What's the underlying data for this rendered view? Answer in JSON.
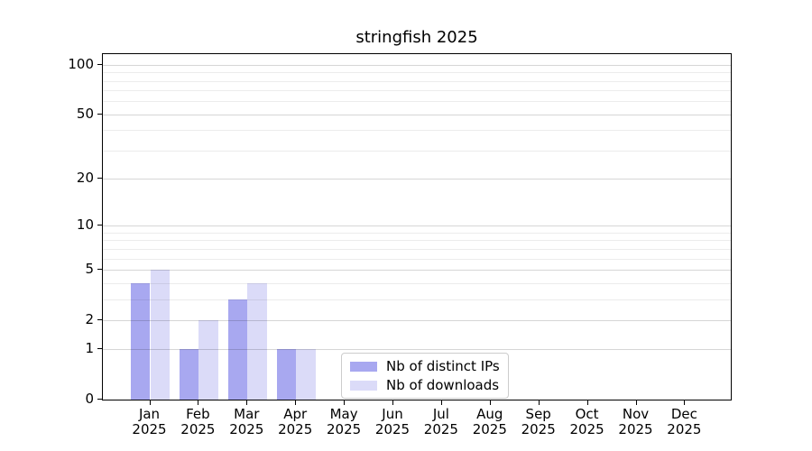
{
  "chart_data": {
    "type": "bar",
    "title": "stringfish 2025",
    "categories": [
      "Jan",
      "Feb",
      "Mar",
      "Apr",
      "May",
      "Jun",
      "Jul",
      "Aug",
      "Sep",
      "Oct",
      "Nov",
      "Dec"
    ],
    "x_year_label": "2025",
    "series": [
      {
        "name": "Nb of distinct IPs",
        "color": "#a8a8f0",
        "values": [
          4,
          1,
          3,
          1,
          0,
          0,
          0,
          0,
          0,
          0,
          0,
          0
        ]
      },
      {
        "name": "Nb of downloads",
        "color": "#dbdbf8",
        "values": [
          5,
          2,
          4,
          1,
          0,
          0,
          0,
          0,
          0,
          0,
          0,
          0
        ]
      }
    ],
    "xlabel": "",
    "ylabel": "",
    "y_scale": "log1p",
    "ylim": [
      0,
      116
    ],
    "y_ticks": [
      0,
      1,
      2,
      5,
      10,
      20,
      50,
      100
    ],
    "y_minor_gridlines": [
      3,
      4,
      6,
      7,
      8,
      9,
      30,
      40,
      60,
      70,
      80,
      90
    ],
    "grid": "horizontal",
    "legend_position": "lower-center",
    "colors": {
      "spine": "#000000",
      "major_grid": "rgba(0,0,0,0.16)",
      "minor_grid": "rgba(0,0,0,0.075)",
      "background": "#ffffff"
    }
  }
}
